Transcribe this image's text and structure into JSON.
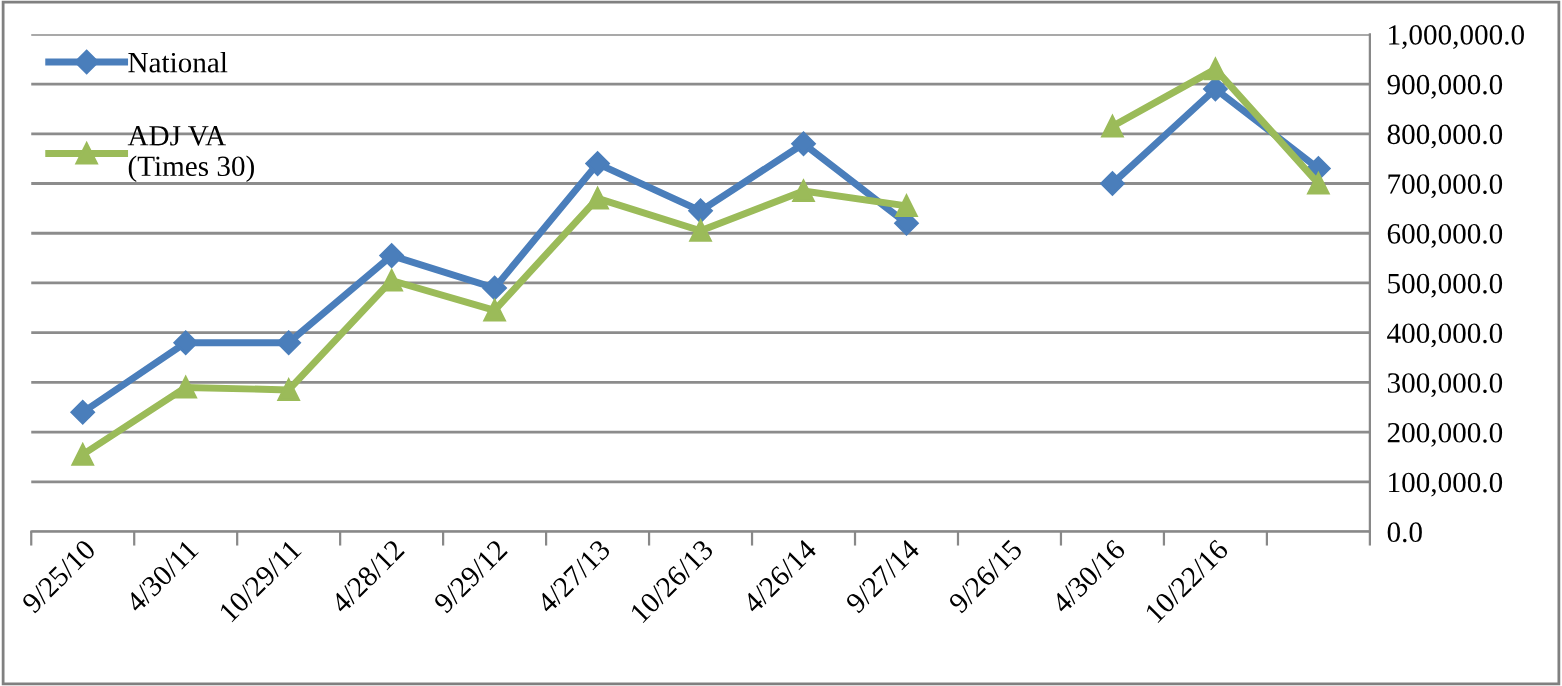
{
  "chart_data": {
    "type": "line",
    "categories": [
      "9/25/10",
      "4/30/11",
      "10/29/11",
      "4/28/12",
      "9/29/12",
      "4/27/13",
      "10/26/13",
      "4/26/14",
      "9/27/14",
      "9/26/15",
      "4/30/16",
      "10/22/16",
      null
    ],
    "series": [
      {
        "name": "National",
        "color": "#4a7ebb",
        "marker": "diamond",
        "values": [
          240000,
          380000,
          380000,
          555000,
          490000,
          740000,
          645000,
          780000,
          620000,
          null,
          700000,
          890000,
          730000
        ]
      },
      {
        "name": "ADJ VA\n(Times 30)",
        "color": "#9bbb59",
        "marker": "triangle",
        "values": [
          155000,
          290000,
          285000,
          505000,
          445000,
          670000,
          605000,
          685000,
          655000,
          null,
          815000,
          930000,
          700000
        ]
      }
    ],
    "ylim": [
      0,
      1000000
    ],
    "yticks": [
      {
        "value": 0,
        "label": "0.0"
      },
      {
        "value": 100000,
        "label": "100,000.0"
      },
      {
        "value": 200000,
        "label": "200,000.0"
      },
      {
        "value": 300000,
        "label": "300,000.0"
      },
      {
        "value": 400000,
        "label": "400,000.0"
      },
      {
        "value": 500000,
        "label": "500,000.0"
      },
      {
        "value": 600000,
        "label": "600,000.0"
      },
      {
        "value": 700000,
        "label": "700,000.0"
      },
      {
        "value": 800000,
        "label": "800,000.0"
      },
      {
        "value": 900000,
        "label": "900,000.0"
      },
      {
        "value": 1000000,
        "label": "1,000,000.0"
      }
    ],
    "grid": "y",
    "legend": "top left",
    "line_style": "solid"
  }
}
